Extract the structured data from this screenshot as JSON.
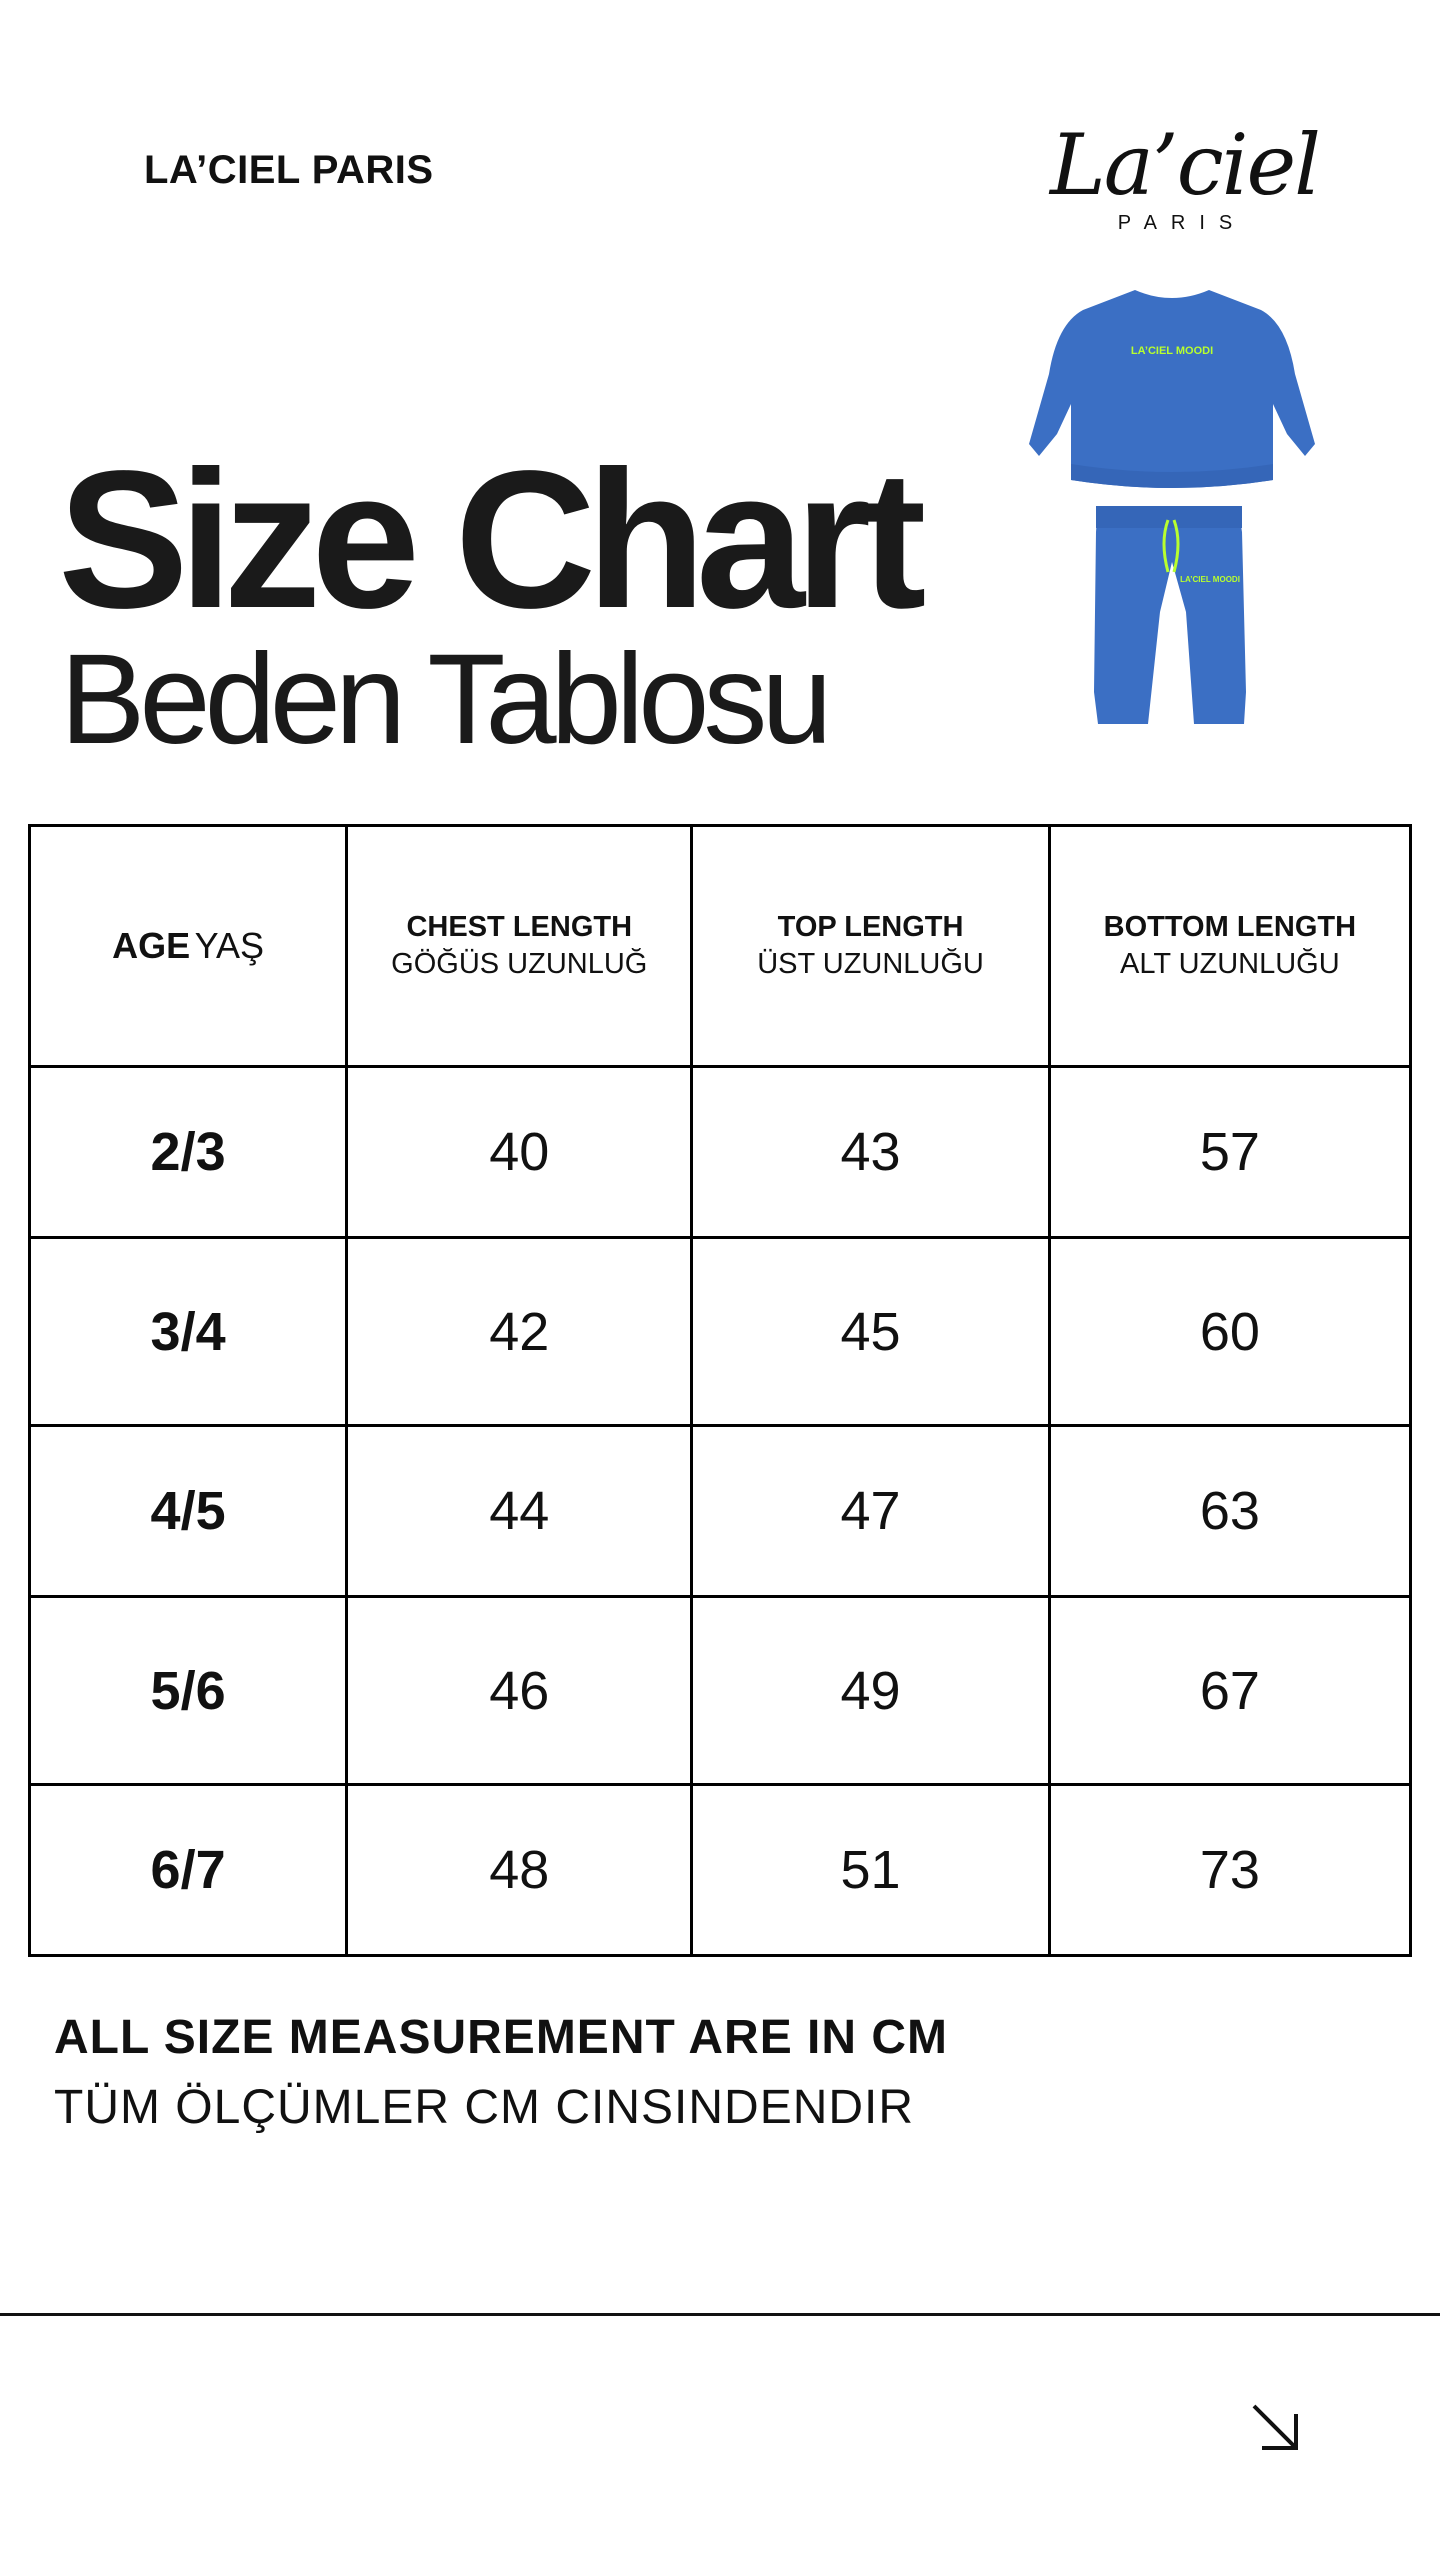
{
  "brand": "LA’CIEL PARIS",
  "logo": {
    "script": "La’ciel",
    "sub": "PARIS"
  },
  "title": "Size Chart",
  "subtitle": "Beden Tablosu",
  "product_print": "LA’CIEL MOODI",
  "colors": {
    "garment": "#3b6fc4",
    "accent": "#b8ff2e"
  },
  "table": {
    "headers": [
      {
        "bold": "AGE",
        "regular": "YAŞ"
      },
      {
        "bold": "CHEST LENGTH",
        "regular": "GÖĞÜS UZUNLUĞ"
      },
      {
        "bold": "TOP LENGTH",
        "regular": "ÜST UZUNLUĞU"
      },
      {
        "bold": "BOTTOM LENGTH",
        "regular": "ALT UZUNLUĞU"
      }
    ],
    "rows": [
      [
        "2/3",
        "40",
        "43",
        "57"
      ],
      [
        "3/4",
        "42",
        "45",
        "60"
      ],
      [
        "4/5",
        "44",
        "47",
        "63"
      ],
      [
        "5/6",
        "46",
        "49",
        "67"
      ],
      [
        "6/7",
        "48",
        "51",
        "73"
      ]
    ]
  },
  "note": {
    "line1": "ALL SIZE MEASUREMENT ARE IN CM",
    "line2": "TÜM ÖLÇÜMLER CM CINSINDENDIR"
  },
  "arrow_icon": "arrow-down-right-icon"
}
